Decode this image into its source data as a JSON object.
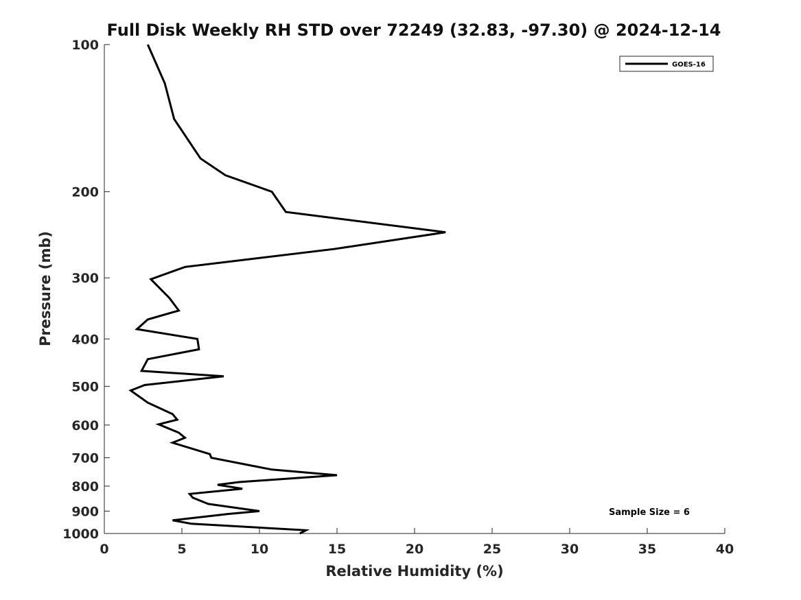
{
  "chart_data": {
    "type": "line",
    "title": "Full Disk Weekly RH STD over 72249 (32.83, -97.30) @ 2024-12-14",
    "xlabel": "Relative Humidity (%)",
    "ylabel": "Pressure (mb)",
    "xlim": [
      0,
      40
    ],
    "ylim": [
      100,
      1000
    ],
    "y_scale": "log",
    "y_reversed": true,
    "xticks": [
      0,
      5,
      10,
      15,
      20,
      25,
      30,
      35,
      40
    ],
    "xtick_labels": [
      "0",
      "5",
      "10",
      "15",
      "20",
      "25",
      "30",
      "35",
      "40"
    ],
    "yticks": [
      100,
      200,
      300,
      400,
      500,
      600,
      700,
      800,
      900,
      1000
    ],
    "ytick_labels": [
      "100",
      "200",
      "300",
      "400",
      "500",
      "600",
      "700",
      "800",
      "900",
      "1000"
    ],
    "grid": false,
    "legend_position": "top-right",
    "annotation": "Sample Size = 6",
    "series": [
      {
        "name": "GOES-16",
        "color": "#000000",
        "x": [
          2.8,
          3.9,
          4.5,
          6.2,
          7.8,
          10.8,
          11.7,
          22.0,
          14.8,
          5.2,
          3.0,
          4.2,
          4.8,
          2.8,
          2.1,
          6.0,
          6.1,
          2.8,
          2.4,
          7.7,
          2.6,
          1.7,
          2.8,
          4.4,
          4.7,
          3.5,
          4.8,
          5.2,
          4.4,
          6.8,
          6.9,
          10.8,
          15.0,
          8.7,
          7.3,
          8.9,
          5.5,
          5.7,
          6.7,
          10.0,
          8.0,
          4.4,
          5.6,
          13.0,
          12.6
        ],
        "y": [
          100,
          120,
          142,
          171,
          185,
          200,
          220,
          242,
          262,
          285,
          302,
          330,
          350,
          365,
          382,
          400,
          420,
          440,
          465,
          477,
          497,
          510,
          540,
          570,
          585,
          598,
          622,
          637,
          652,
          688,
          700,
          740,
          760,
          785,
          795,
          810,
          830,
          845,
          870,
          900,
          912,
          940,
          955,
          985,
          1000
        ]
      }
    ]
  }
}
